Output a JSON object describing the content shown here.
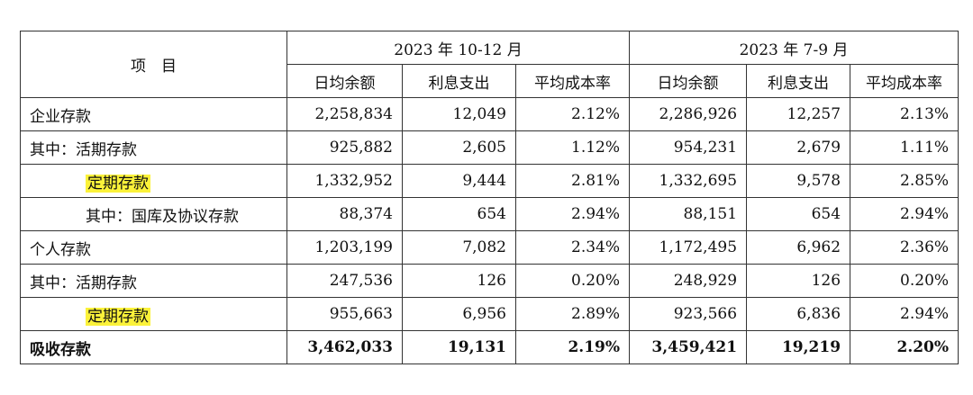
{
  "header": {
    "item": "项　目",
    "period1": "2023 年 10-12 月",
    "period2": "2023 年 7-9 月",
    "columns": [
      "日均余额",
      "利息支出",
      "平均成本率",
      "日均余额",
      "利息支出",
      "平均成本率"
    ]
  },
  "rows": [
    {
      "label": "企业存款",
      "values": [
        "2,258,834",
        "12,049",
        "2.12%",
        "2,286,926",
        "12,257",
        "2.13%"
      ]
    },
    {
      "label": "其中：活期存款",
      "values": [
        "925,882",
        "2,605",
        "1.12%",
        "954,231",
        "2,679",
        "1.11%"
      ]
    },
    {
      "label": "定期存款",
      "values": [
        "1,332,952",
        "9,444",
        "2.81%",
        "1,332,695",
        "9,578",
        "2.85%"
      ]
    },
    {
      "label": "其中：国库及协议存款",
      "values": [
        "88,374",
        "654",
        "2.94%",
        "88,151",
        "654",
        "2.94%"
      ]
    },
    {
      "label": "个人存款",
      "values": [
        "1,203,199",
        "7,082",
        "2.34%",
        "1,172,495",
        "6,962",
        "2.36%"
      ]
    },
    {
      "label": "其中：活期存款",
      "values": [
        "247,536",
        "126",
        "0.20%",
        "248,929",
        "126",
        "0.20%"
      ]
    },
    {
      "label": "定期存款",
      "values": [
        "955,663",
        "6,956",
        "2.89%",
        "923,566",
        "6,836",
        "2.94%"
      ]
    },
    {
      "label": "吸收存款",
      "values": [
        "3,462,033",
        "19,131",
        "2.19%",
        "3,459,421",
        "19,219",
        "2.20%"
      ]
    }
  ],
  "highlight_color": "#fbf23a"
}
